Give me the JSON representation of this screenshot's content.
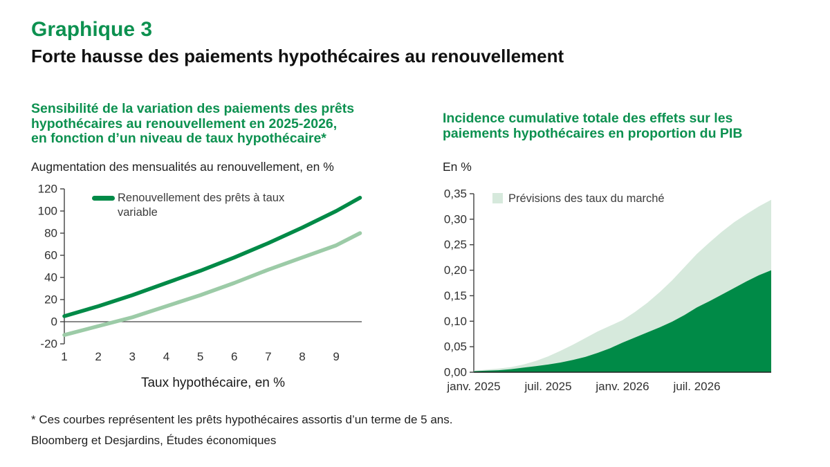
{
  "header": {
    "kicker": "Graphique 3",
    "title": "Forte hausse des paiements hypothécaires au renouvellement"
  },
  "colors": {
    "heading_green": "#0d9150",
    "dark_green": "#008a47",
    "light_green_line": "#9ccba7",
    "light_green_area": "#d6e9dc",
    "axis": "#404040"
  },
  "left_panel": {
    "title_lines": [
      "Sensibilité de la variation des paiements des prêts",
      "hypothécaires au renouvellement en 2025-2026,",
      "en fonction d’un niveau de taux hypothécaire*"
    ],
    "subtitle": "Augmentation des mensualités au renouvellement, en %"
  },
  "right_panel": {
    "title_lines": [
      "Incidence cumulative totale des effets sur les",
      "paiements hypothécaires en proportion du PIB"
    ],
    "subtitle": "En %"
  },
  "footnotes": [
    "* Ces courbes représentent les prêts hypothécaires assortis d’un terme de 5 ans.",
    "Bloomberg et Desjardins, Études économiques"
  ],
  "chart_data": [
    {
      "type": "line",
      "title": "Sensibilité de la variation des paiements des prêts hypothécaires au renouvellement en 2025-2026, en fonction d’un niveau de taux hypothécaire*",
      "ylabel": "Augmentation des mensualités au renouvellement, en %",
      "xlabel": "Taux hypothécaire, en %",
      "xlim": [
        1,
        9.75
      ],
      "ylim": [
        -20,
        120
      ],
      "ytick_step": 20,
      "xticks": [
        1,
        2,
        3,
        4,
        5,
        6,
        7,
        8,
        9
      ],
      "grid": false,
      "legend_position": "top-left",
      "x": [
        1,
        2,
        3,
        4,
        5,
        6,
        7,
        8,
        9,
        9.7
      ],
      "series": [
        {
          "name": "Renouvellement des prêts à taux variable",
          "color": "dark_green",
          "in_legend": true,
          "values": [
            5,
            14,
            24,
            35,
            46,
            58,
            71,
            85,
            100,
            112
          ]
        },
        {
          "name": "",
          "color": "light_green_line",
          "in_legend": false,
          "values": [
            -12,
            -4,
            4,
            14,
            24,
            35,
            47,
            58,
            69,
            80
          ]
        }
      ]
    },
    {
      "type": "area",
      "title": "Incidence cumulative totale des effets sur les paiements hypothécaires en proportion du PIB",
      "ylabel": "En %",
      "ylim": [
        0,
        0.35
      ],
      "ytick_step": 0.05,
      "ytick_decimals": 2,
      "decimal_comma": true,
      "grid": false,
      "legend_position": "top-left",
      "xticks": [
        {
          "pos": 0,
          "label": "janv. 2025"
        },
        {
          "pos": 6,
          "label": "juil. 2025"
        },
        {
          "pos": 12,
          "label": "janv. 2026"
        },
        {
          "pos": 18,
          "label": "juil. 2026"
        }
      ],
      "series": [
        {
          "name": "Prévisions des taux du marché",
          "color": "light_green_area",
          "in_legend": true,
          "values": [
            0.003,
            0.005,
            0.007,
            0.01,
            0.015,
            0.022,
            0.031,
            0.042,
            0.054,
            0.067,
            0.08,
            0.091,
            0.102,
            0.118,
            0.136,
            0.157,
            0.18,
            0.206,
            0.232,
            0.254,
            0.275,
            0.294,
            0.31,
            0.325,
            0.338
          ]
        },
        {
          "name": "",
          "color": "dark_green",
          "in_legend": false,
          "values": [
            0.002,
            0.003,
            0.004,
            0.006,
            0.009,
            0.012,
            0.015,
            0.019,
            0.024,
            0.03,
            0.038,
            0.047,
            0.058,
            0.068,
            0.078,
            0.088,
            0.099,
            0.112,
            0.127,
            0.139,
            0.152,
            0.165,
            0.178,
            0.19,
            0.2
          ]
        }
      ]
    }
  ]
}
